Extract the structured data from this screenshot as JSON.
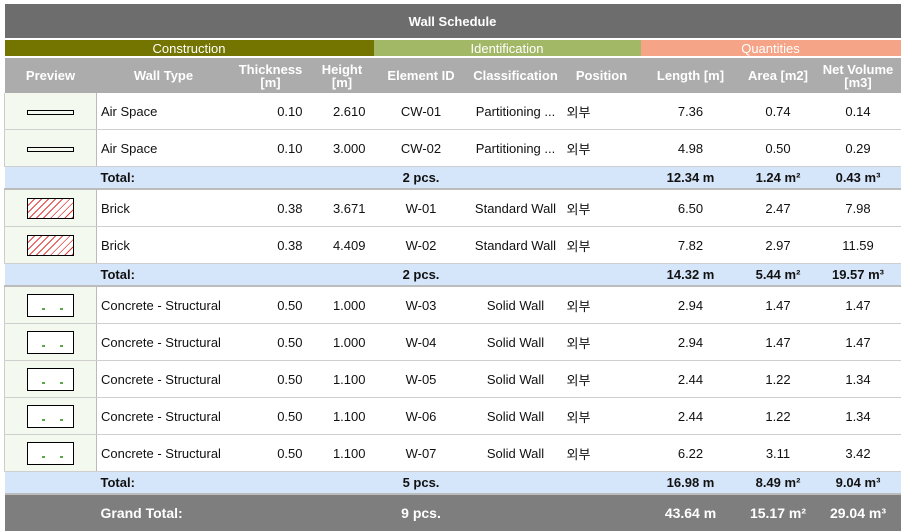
{
  "title": "Wall Schedule",
  "groups": {
    "construction": "Construction",
    "identification": "Identification",
    "quantities": "Quantities"
  },
  "columns": {
    "preview": "Preview",
    "wall_type": "Wall Type",
    "thickness": "Thickness",
    "thickness_unit": "[m]",
    "height": "Height",
    "height_unit": "[m]",
    "element_id": "Element ID",
    "classification": "Classification",
    "position": "Position",
    "length": "Length [m]",
    "area": "Area [m2]",
    "net_volume": "Net Volume",
    "net_volume_unit": "[m3]"
  },
  "colors": {
    "title_bg": "#6d6d6d",
    "construction": "#747400",
    "identification": "#a2b866",
    "quantities": "#f5a487",
    "header_bg": "#acacac",
    "total_bg": "#d6e6fa",
    "grand_bg": "#7e7e7e"
  },
  "groups_data": [
    {
      "rows": [
        {
          "preview": "air-space-preview-icon",
          "wall_type": "Air Space",
          "thickness": "0.10",
          "height": "2.610",
          "element_id": "CW-01",
          "classification": "Partitioning ...",
          "position": "외부",
          "length": "7.36",
          "area": "0.74",
          "net_volume": "0.14"
        },
        {
          "preview": "air-space-preview-icon",
          "wall_type": "Air Space",
          "thickness": "0.10",
          "height": "3.000",
          "element_id": "CW-02",
          "classification": "Partitioning ...",
          "position": "외부",
          "length": "4.98",
          "area": "0.50",
          "net_volume": "0.29"
        }
      ],
      "total": {
        "label": "Total:",
        "count": "2 pcs.",
        "length": "12.34 m",
        "area": "1.24 m²",
        "net_volume": "0.43 m³"
      }
    },
    {
      "rows": [
        {
          "preview": "brick-preview-icon",
          "wall_type": "Brick",
          "thickness": "0.38",
          "height": "3.671",
          "element_id": "W-01",
          "classification": "Standard Wall",
          "position": "외부",
          "length": "6.50",
          "area": "2.47",
          "net_volume": "7.98"
        },
        {
          "preview": "brick-preview-icon",
          "wall_type": "Brick",
          "thickness": "0.38",
          "height": "4.409",
          "element_id": "W-02",
          "classification": "Standard Wall",
          "position": "외부",
          "length": "7.82",
          "area": "2.97",
          "net_volume": "11.59"
        }
      ],
      "total": {
        "label": "Total:",
        "count": "2 pcs.",
        "length": "14.32 m",
        "area": "5.44 m²",
        "net_volume": "19.57 m³"
      }
    },
    {
      "rows": [
        {
          "preview": "concrete-preview-icon",
          "wall_type": "Concrete - Structural",
          "thickness": "0.50",
          "height": "1.000",
          "element_id": "W-03",
          "classification": "Solid Wall",
          "position": "외부",
          "length": "2.94",
          "area": "1.47",
          "net_volume": "1.47"
        },
        {
          "preview": "concrete-preview-icon",
          "wall_type": "Concrete - Structural",
          "thickness": "0.50",
          "height": "1.000",
          "element_id": "W-04",
          "classification": "Solid Wall",
          "position": "외부",
          "length": "2.94",
          "area": "1.47",
          "net_volume": "1.47"
        },
        {
          "preview": "concrete-preview-icon",
          "wall_type": "Concrete - Structural",
          "thickness": "0.50",
          "height": "1.100",
          "element_id": "W-05",
          "classification": "Solid Wall",
          "position": "외부",
          "length": "2.44",
          "area": "1.22",
          "net_volume": "1.34"
        },
        {
          "preview": "concrete-preview-icon",
          "wall_type": "Concrete - Structural",
          "thickness": "0.50",
          "height": "1.100",
          "element_id": "W-06",
          "classification": "Solid Wall",
          "position": "외부",
          "length": "2.44",
          "area": "1.22",
          "net_volume": "1.34"
        },
        {
          "preview": "concrete-preview-icon",
          "wall_type": "Concrete - Structural",
          "thickness": "0.50",
          "height": "1.100",
          "element_id": "W-07",
          "classification": "Solid Wall",
          "position": "외부",
          "length": "6.22",
          "area": "3.11",
          "net_volume": "3.42"
        }
      ],
      "total": {
        "label": "Total:",
        "count": "5 pcs.",
        "length": "16.98 m",
        "area": "8.49 m²",
        "net_volume": "9.04 m³"
      }
    }
  ],
  "grand_total": {
    "label": "Grand Total:",
    "count": "9 pcs.",
    "length": "43.64 m",
    "area": "15.17 m²",
    "net_volume": "29.04 m³"
  }
}
